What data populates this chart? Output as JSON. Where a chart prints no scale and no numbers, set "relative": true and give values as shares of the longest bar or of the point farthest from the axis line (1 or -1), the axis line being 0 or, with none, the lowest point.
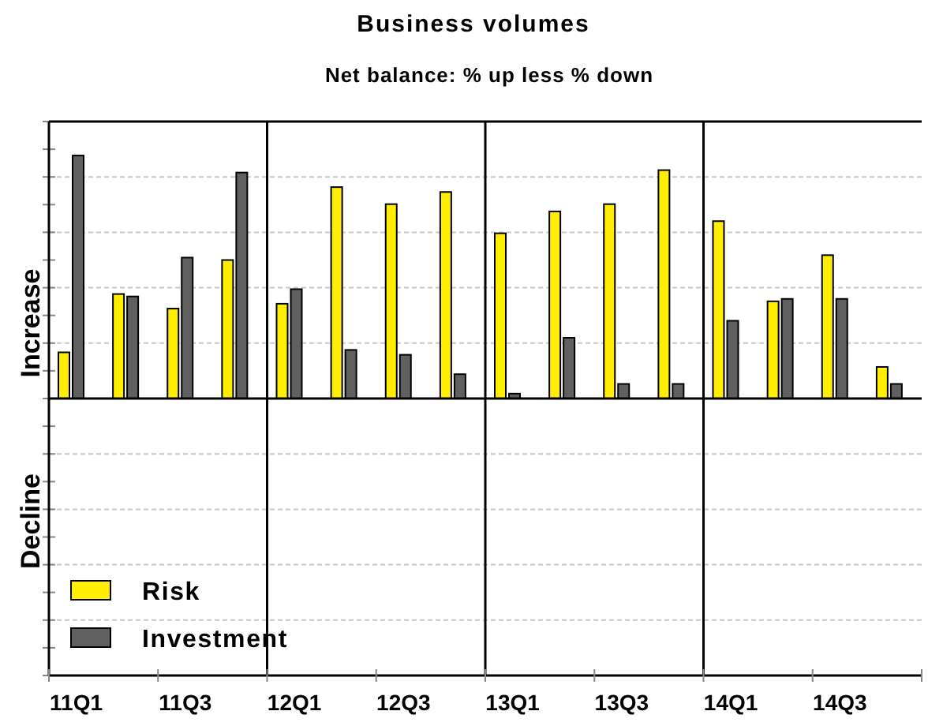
{
  "chart_data": {
    "type": "bar",
    "title": "Business volumes",
    "subtitle": "Net balance: % up less % down",
    "relative": true,
    "grid": "y",
    "legend": "bottom left",
    "categories": [
      "11Q1",
      null,
      "11Q3",
      null,
      "12Q1",
      null,
      "12Q3",
      null,
      "13Q1",
      null,
      "13Q3",
      null,
      "14Q1",
      null,
      "14Q3",
      null
    ],
    "series": [
      {
        "name": "Risk",
        "color": "#ffee00",
        "values": [
          0.19,
          0.43,
          0.37,
          0.57,
          0.39,
          0.87,
          0.8,
          0.85,
          0.68,
          0.77,
          0.8,
          0.94,
          0.73,
          0.4,
          0.59,
          0.13
        ]
      },
      {
        "name": "Investment",
        "color": "#606060",
        "values": [
          1,
          0.42,
          0.58,
          0.93,
          0.45,
          0.2,
          0.18,
          0.1,
          0.02,
          0.25,
          0.06,
          0.06,
          0.32,
          0.41,
          0.41,
          0.06
        ]
      }
    ],
    "annotations": [
      "Increase",
      "Decline"
    ]
  }
}
